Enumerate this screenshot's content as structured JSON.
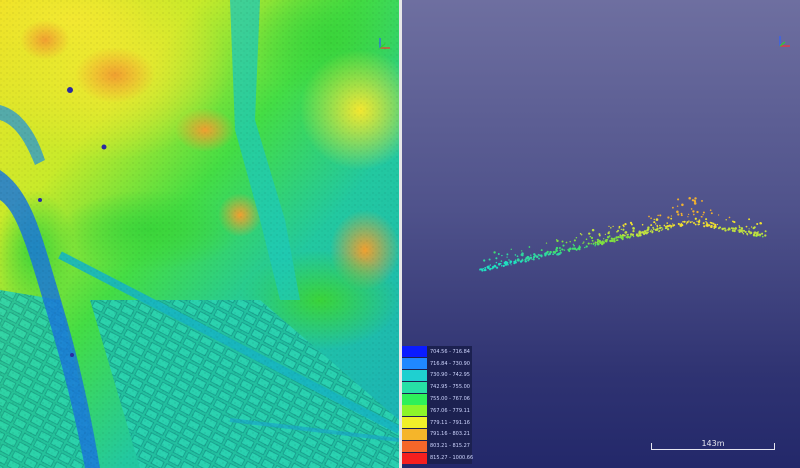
{
  "legend": {
    "items": [
      {
        "label": "704.56 - 716.84",
        "color": "#0a1cff"
      },
      {
        "label": "716.84 - 730.90",
        "color": "#1f88ff"
      },
      {
        "label": "730.90 - 742.95",
        "color": "#1fd0d0"
      },
      {
        "label": "742.95 - 755.00",
        "color": "#27e0a6"
      },
      {
        "label": "755.00 - 767.06",
        "color": "#2ef05a"
      },
      {
        "label": "767.06 - 779.11",
        "color": "#8cf52a"
      },
      {
        "label": "779.11 - 791.16",
        "color": "#f0f02a"
      },
      {
        "label": "791.16 - 803.21",
        "color": "#f5b52a"
      },
      {
        "label": "803.21 - 815.27",
        "color": "#f5662a"
      },
      {
        "label": "815.27 - 1000.66",
        "color": "#f51f1f"
      }
    ]
  },
  "scale": {
    "label": "143m"
  },
  "colors": {
    "profile_accent": "#f0e030",
    "background_top": "#6e6fa0",
    "background_bottom": "#23286a"
  }
}
